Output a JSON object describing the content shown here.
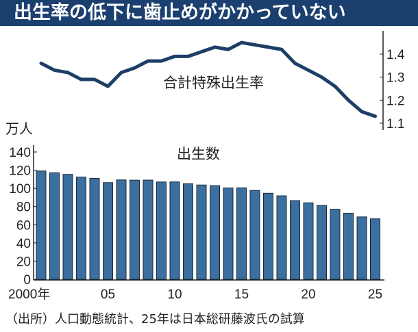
{
  "title": "出生率の低下に歯止めがかかっていない",
  "footer": "（出所）人口動態統計、25年は日本総研藤波氏の試算",
  "colors": {
    "title_bg": "#1b3f6e",
    "line": "#1d3f66",
    "bar": "#3a6f9f",
    "bar_edge": "#1a2a3a"
  },
  "chart_data": [
    {
      "type": "line",
      "label": "合計特殊出生率",
      "x": [
        2000,
        2001,
        2002,
        2003,
        2004,
        2005,
        2006,
        2007,
        2008,
        2009,
        2010,
        2011,
        2012,
        2013,
        2014,
        2015,
        2016,
        2017,
        2018,
        2019,
        2020,
        2021,
        2022,
        2023,
        2024,
        2025
      ],
      "values": [
        1.36,
        1.33,
        1.32,
        1.29,
        1.29,
        1.26,
        1.32,
        1.34,
        1.37,
        1.37,
        1.39,
        1.39,
        1.41,
        1.43,
        1.42,
        1.45,
        1.44,
        1.43,
        1.42,
        1.36,
        1.33,
        1.3,
        1.26,
        1.2,
        1.15,
        1.13
      ],
      "y_axis_side": "right",
      "ylim": [
        1.1,
        1.45
      ],
      "yticks": [
        "1.1",
        "1.2",
        "1.3",
        "1.4"
      ]
    },
    {
      "type": "bar",
      "label": "出生数",
      "unit": "万人",
      "x": [
        2000,
        2001,
        2002,
        2003,
        2004,
        2005,
        2006,
        2007,
        2008,
        2009,
        2010,
        2011,
        2012,
        2013,
        2014,
        2015,
        2016,
        2017,
        2018,
        2019,
        2020,
        2021,
        2022,
        2023,
        2024,
        2025
      ],
      "values": [
        119.1,
        117.1,
        115.4,
        112.4,
        111.1,
        106.3,
        109.3,
        109.0,
        109.1,
        107.0,
        107.1,
        105.1,
        103.7,
        103.0,
        100.4,
        100.6,
        97.7,
        94.6,
        91.8,
        86.5,
        84.1,
        81.2,
        77.1,
        72.7,
        68.6,
        66.5
      ],
      "ylim": [
        0,
        140
      ],
      "yticks": [
        "0",
        "20",
        "40",
        "60",
        "80",
        "100",
        "120",
        "140"
      ],
      "xticks": [
        "2000年",
        "05",
        "10",
        "15",
        "20",
        "25"
      ]
    }
  ]
}
